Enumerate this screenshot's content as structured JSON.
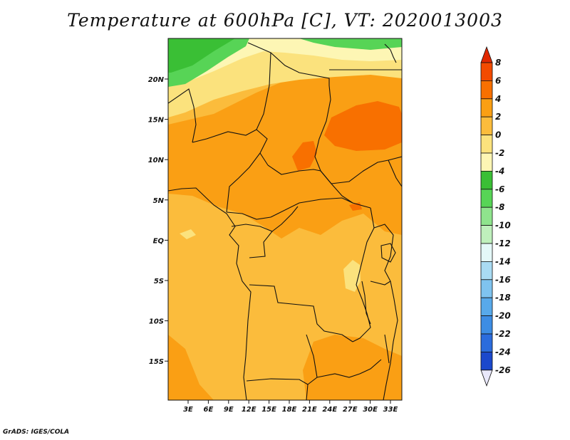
{
  "title": "Temperature at 600hPa [C], VT: 2020013003",
  "footer": "GrADS: IGES/COLA",
  "map": {
    "variable": "Temperature",
    "level": "600hPa",
    "units": "C",
    "valid_time": "2020013003",
    "lon_labels": [
      "3E",
      "6E",
      "9E",
      "12E",
      "15E",
      "18E",
      "21E",
      "24E",
      "27E",
      "30E",
      "33E"
    ],
    "lat_labels": [
      "20N",
      "15N",
      "10N",
      "5N",
      "EQ",
      "5S",
      "10S",
      "15S"
    ]
  },
  "colorbar": {
    "labels": [
      "8",
      "6",
      "4",
      "2",
      "0",
      "-2",
      "-4",
      "-6",
      "-8",
      "-10",
      "-12",
      "-14",
      "-16",
      "-18",
      "-20",
      "-22",
      "-24",
      "-26"
    ],
    "colors": [
      "#e12800",
      "#f34b00",
      "#f87000",
      "#fa9f14",
      "#fbbc3c",
      "#fbe27d",
      "#fdf6b4",
      "#3abf35",
      "#57d456",
      "#8fe48d",
      "#bff0bc",
      "#e4f8f8",
      "#a9dbf3",
      "#7fc3ef",
      "#58a9ea",
      "#3d8de4",
      "#2b6cdd",
      "#1b48cc",
      "#0c1f98",
      "#e9e8fb"
    ]
  },
  "colors": {
    "warm_dominant": "#fbbc3c",
    "warm_mid": "#fa9f14",
    "warm_hot": "#f87000",
    "hottest": "#f34b00",
    "cool_band": "#fbe27d",
    "cold_band": "#fdf6b4",
    "green": "#3abf35"
  }
}
